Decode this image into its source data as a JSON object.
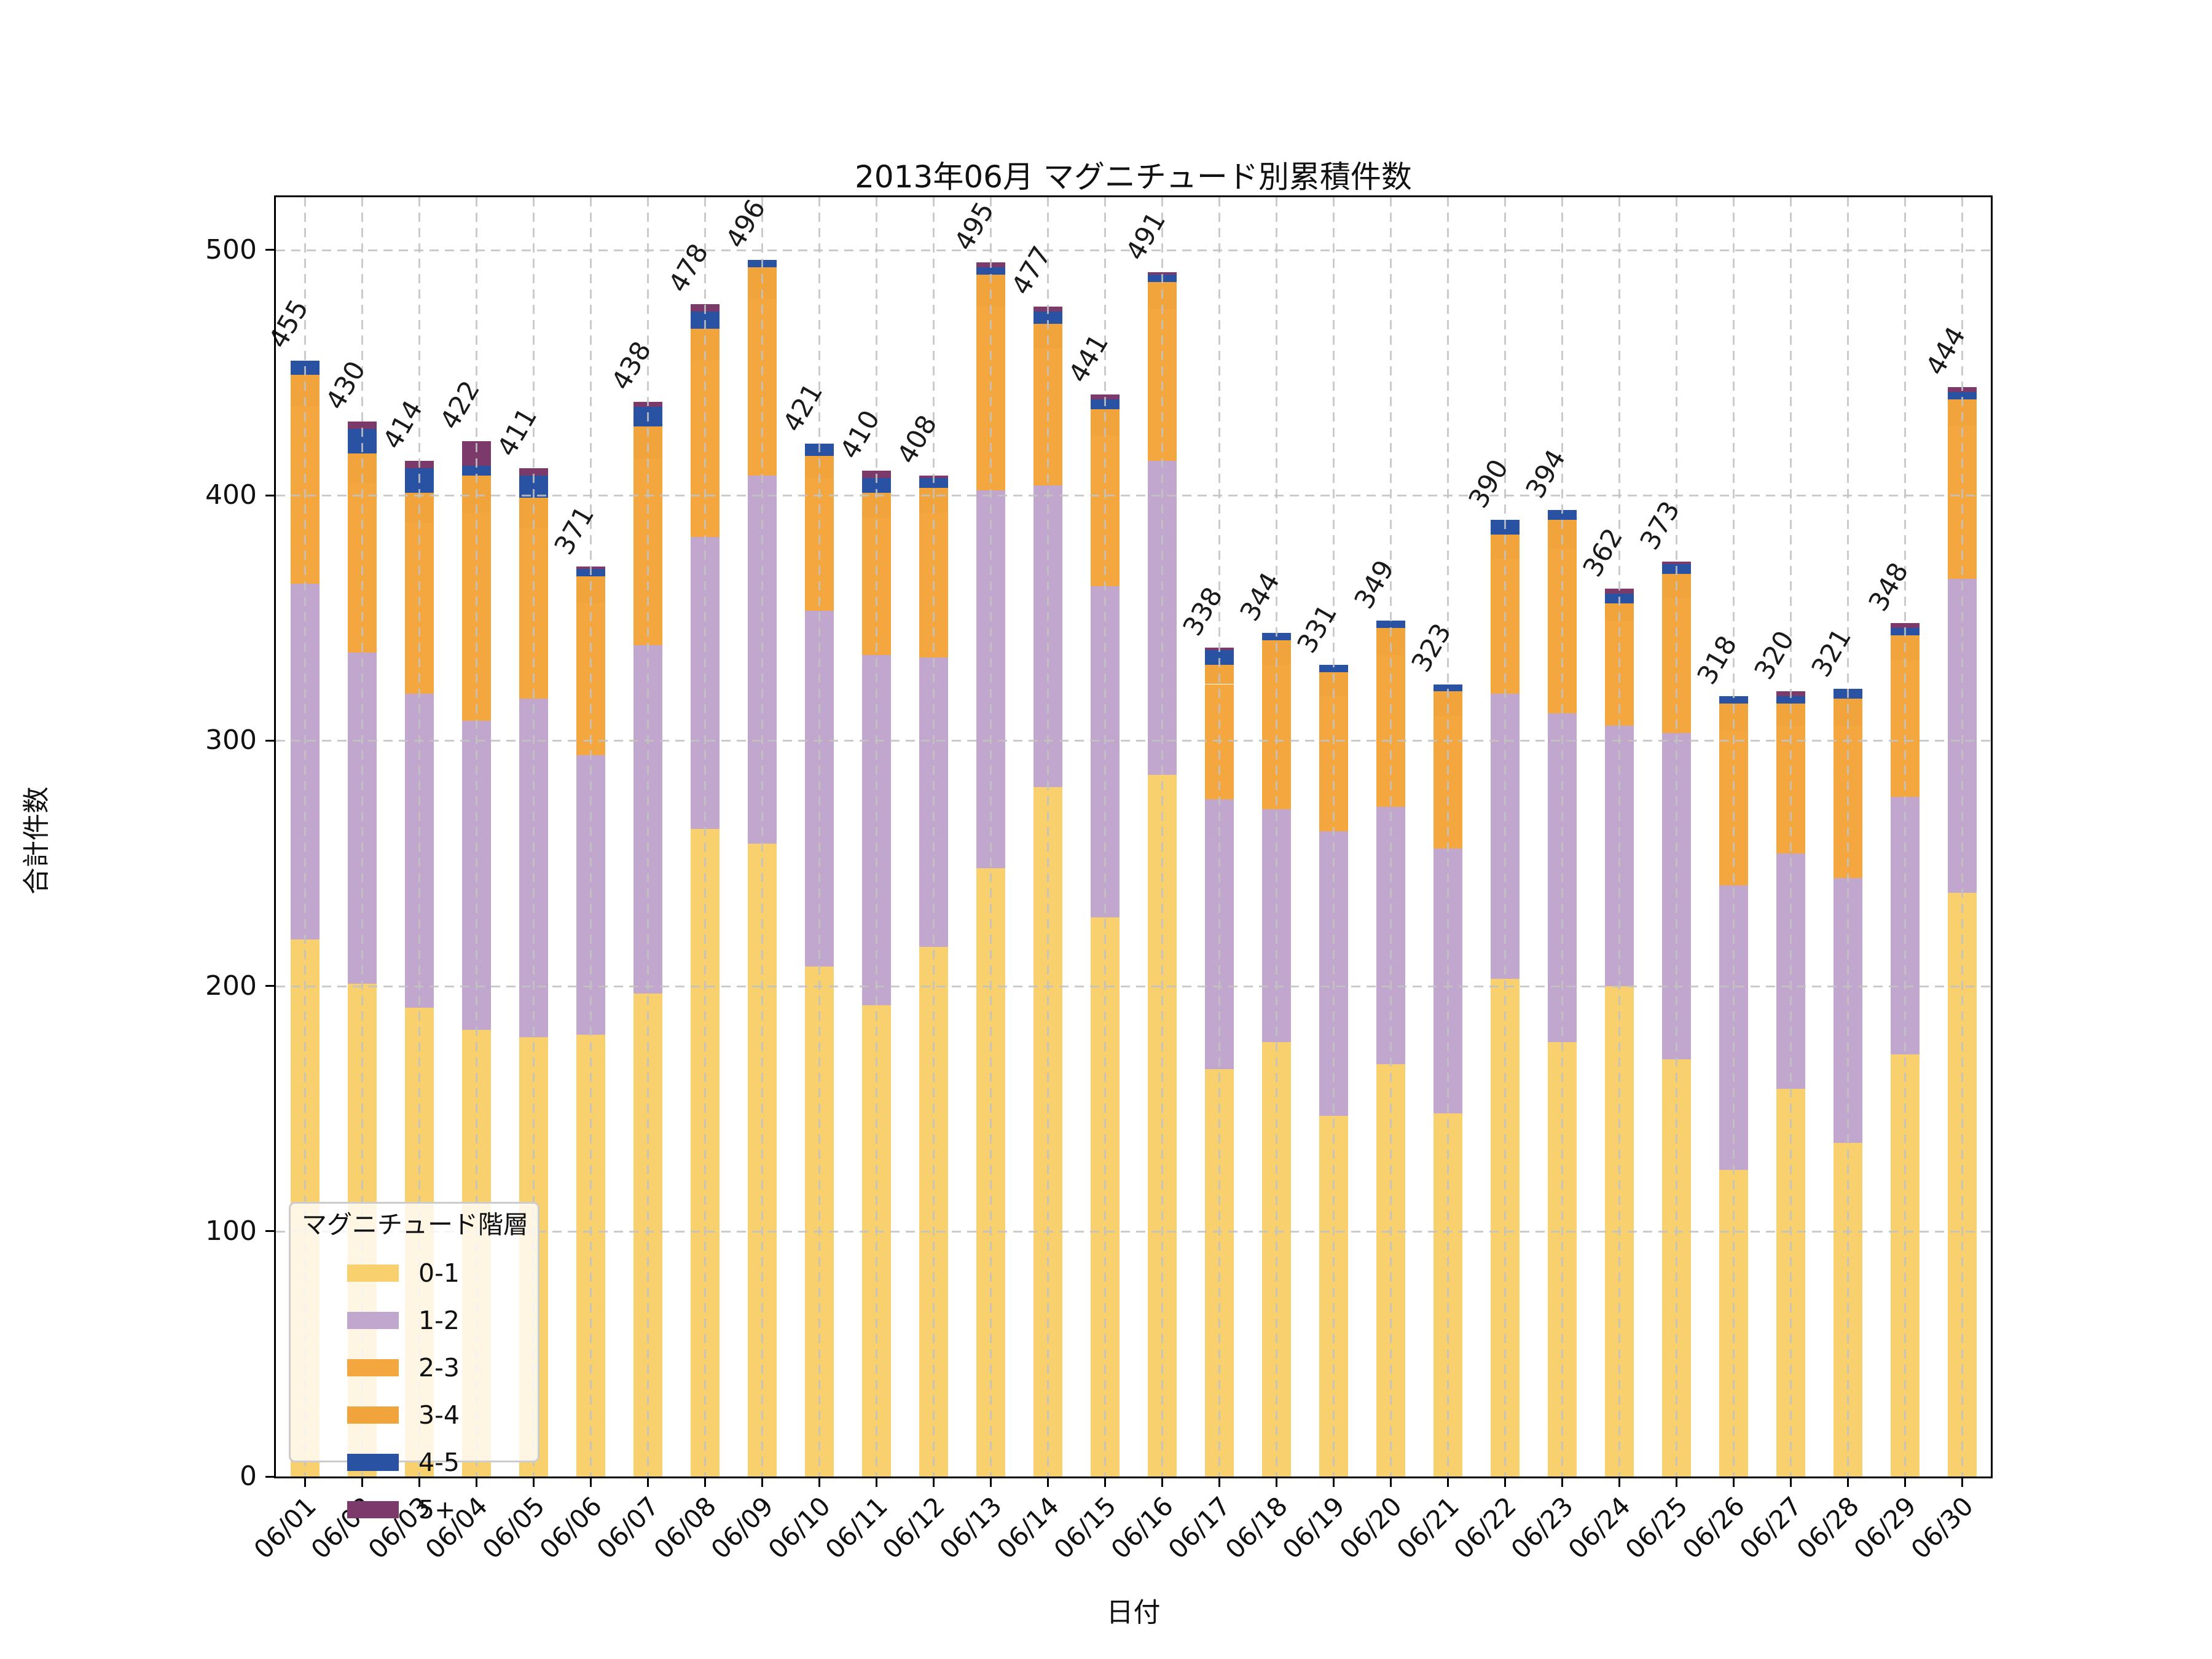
{
  "title": "2013年06月 マグニチュード別累積件数",
  "x_axis": {
    "label": "日付"
  },
  "y_axis": {
    "label": "合計件数",
    "ticks": [
      0,
      100,
      200,
      300,
      400,
      500
    ]
  },
  "legend": {
    "title": "マグニチュード階層",
    "entries": [
      {
        "label": "0-1",
        "color": "#F8D06E"
      },
      {
        "label": "1-2",
        "color": "#C1A7CE"
      },
      {
        "label": "2-3",
        "color": "#F4A63F"
      },
      {
        "label": "3-4",
        "color": "#F1A33C"
      },
      {
        "label": "4-5",
        "color": "#2953A2"
      },
      {
        "label": "5+",
        "color": "#7C3A6B"
      }
    ]
  },
  "chart_data": {
    "type": "bar",
    "stacked": true,
    "title": "2013年06月 マグニチュード別累積件数",
    "xlabel": "日付",
    "ylabel": "合計件数",
    "ylim": [
      0,
      521.5
    ],
    "grid": true,
    "gridline_color": "#c2c2c2",
    "legend_position": "lower left",
    "bar_total_labels": [
      455,
      430,
      414,
      422,
      411,
      371,
      438,
      478,
      496,
      421,
      410,
      408,
      495,
      477,
      441,
      491,
      338,
      344,
      331,
      349,
      323,
      390,
      394,
      362,
      373,
      318,
      320,
      321,
      348,
      444
    ],
    "categories": [
      "06/01",
      "06/02",
      "06/03",
      "06/04",
      "06/05",
      "06/06",
      "06/07",
      "06/08",
      "06/09",
      "06/10",
      "06/11",
      "06/12",
      "06/13",
      "06/14",
      "06/15",
      "06/16",
      "06/17",
      "06/18",
      "06/19",
      "06/20",
      "06/21",
      "06/22",
      "06/23",
      "06/24",
      "06/25",
      "06/26",
      "06/27",
      "06/28",
      "06/29",
      "06/30"
    ],
    "series": [
      {
        "name": "0-1",
        "color": "#F8D06E",
        "values": [
          219,
          201,
          191,
          182,
          179,
          180,
          197,
          264,
          258,
          208,
          192,
          216,
          248,
          281,
          228,
          286,
          166,
          177,
          147,
          168,
          148,
          203,
          177,
          200,
          170,
          125,
          158,
          136,
          172,
          238
        ]
      },
      {
        "name": "1-2",
        "color": "#C1A7CE",
        "values": [
          145,
          135,
          128,
          126,
          138,
          114,
          142,
          119,
          150,
          145,
          143,
          118,
          154,
          123,
          135,
          128,
          110,
          95,
          116,
          105,
          108,
          116,
          134,
          106,
          133,
          116,
          96,
          108,
          105,
          128
        ]
      },
      {
        "name": "2-3",
        "color": "#F4A63F",
        "values": [
          72,
          69,
          70,
          85,
          70,
          62,
          76,
          72,
          72,
          54,
          56,
          59,
          75,
          56,
          61,
          62,
          47,
          59,
          55,
          62,
          54,
          55,
          67,
          43,
          55,
          63,
          52,
          62,
          56,
          62
        ]
      },
      {
        "name": "3-4",
        "color": "#F1A33C",
        "values": [
          13,
          12,
          12,
          15,
          12,
          11,
          13,
          13,
          13,
          9,
          10,
          10,
          13,
          10,
          11,
          11,
          8,
          10,
          10,
          11,
          10,
          10,
          12,
          7,
          10,
          11,
          9,
          11,
          10,
          11
        ]
      },
      {
        "name": "4-5",
        "color": "#2953A2",
        "values": [
          6,
          10,
          10,
          4,
          9,
          3,
          8,
          7,
          3,
          5,
          6,
          4,
          3,
          5,
          4,
          3,
          6,
          3,
          3,
          3,
          3,
          6,
          4,
          4,
          4,
          3,
          3,
          4,
          3,
          3
        ]
      },
      {
        "name": "5+",
        "color": "#7C3A6B",
        "values": [
          0,
          3,
          3,
          10,
          3,
          1,
          2,
          3,
          0,
          0,
          3,
          1,
          2,
          2,
          2,
          1,
          1,
          0,
          0,
          0,
          0,
          0,
          0,
          2,
          1,
          0,
          2,
          0,
          2,
          2
        ]
      }
    ],
    "note": "2-3 and 3-4 rendered in near-identical orange in source; their split within the combined orange block is estimated."
  }
}
